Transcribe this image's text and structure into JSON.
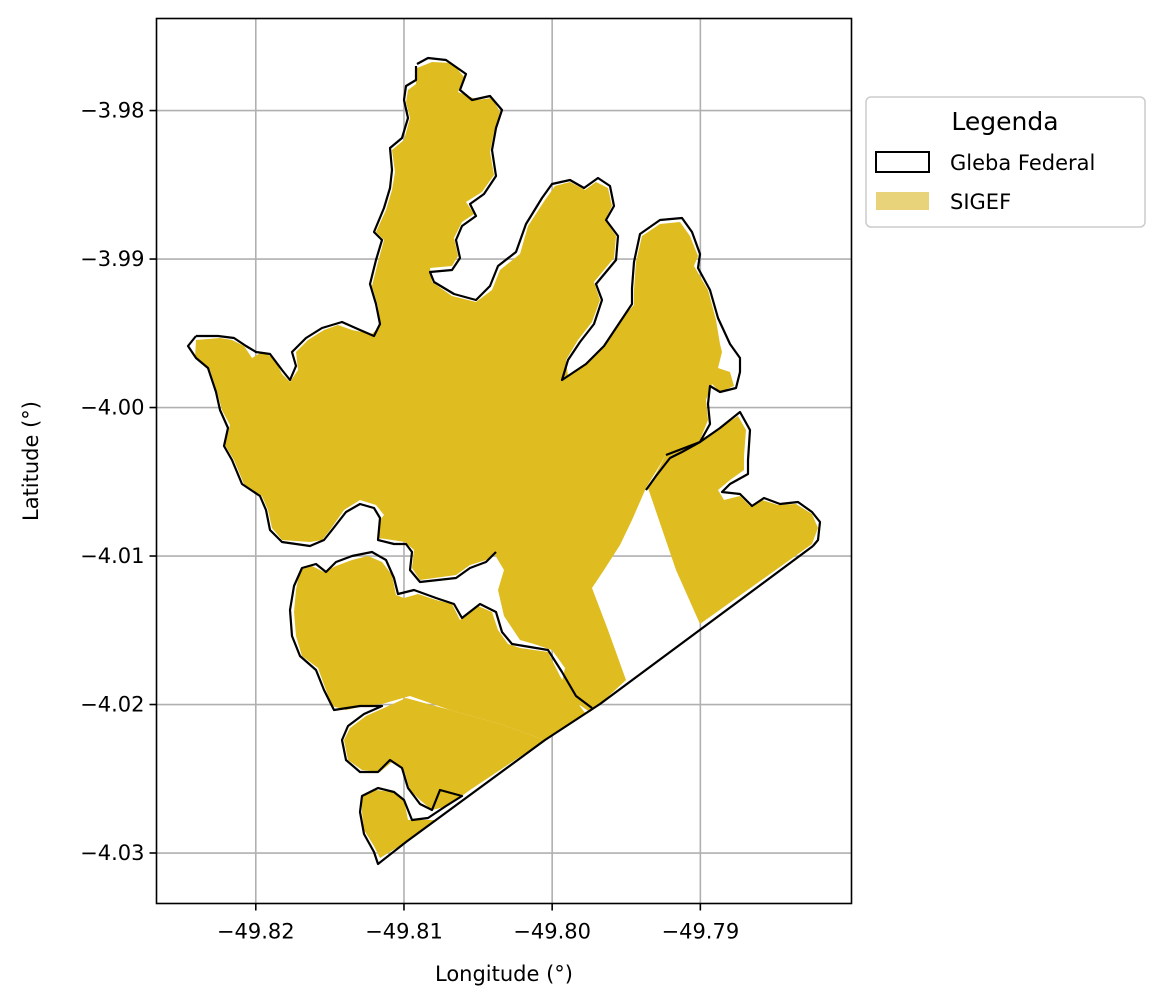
{
  "map": {
    "xlabel": "Longitude (°)",
    "ylabel": "Latitude (°)",
    "grid": true,
    "xlim": [
      -49.8267,
      -49.7798
    ],
    "ylim": [
      -4.0334,
      -3.9738
    ],
    "xticks": [
      {
        "value": -49.82,
        "label": "−49.82"
      },
      {
        "value": -49.81,
        "label": "−49.81"
      },
      {
        "value": -49.8,
        "label": "−49.80"
      },
      {
        "value": -49.79,
        "label": "−49.79"
      }
    ],
    "yticks": [
      {
        "value": -3.98,
        "label": "−3.98"
      },
      {
        "value": -3.99,
        "label": "−3.99"
      },
      {
        "value": -4.0,
        "label": "−4.00"
      },
      {
        "value": -4.01,
        "label": "−4.01"
      },
      {
        "value": -4.02,
        "label": "−4.02"
      },
      {
        "value": -4.03,
        "label": "−4.03"
      }
    ],
    "colors": {
      "sigef_fill": "#dfbc1f",
      "gleba_outline": "#000000",
      "grid": "#b0b0b0",
      "legend_sigef_patch": "#e8d37a"
    },
    "legend": {
      "title": "Legenda",
      "placement": "outside upper-right",
      "items": [
        {
          "label": "Gleba Federal",
          "style": "outline"
        },
        {
          "label": "SIGEF",
          "style": "fill"
        }
      ]
    }
  }
}
